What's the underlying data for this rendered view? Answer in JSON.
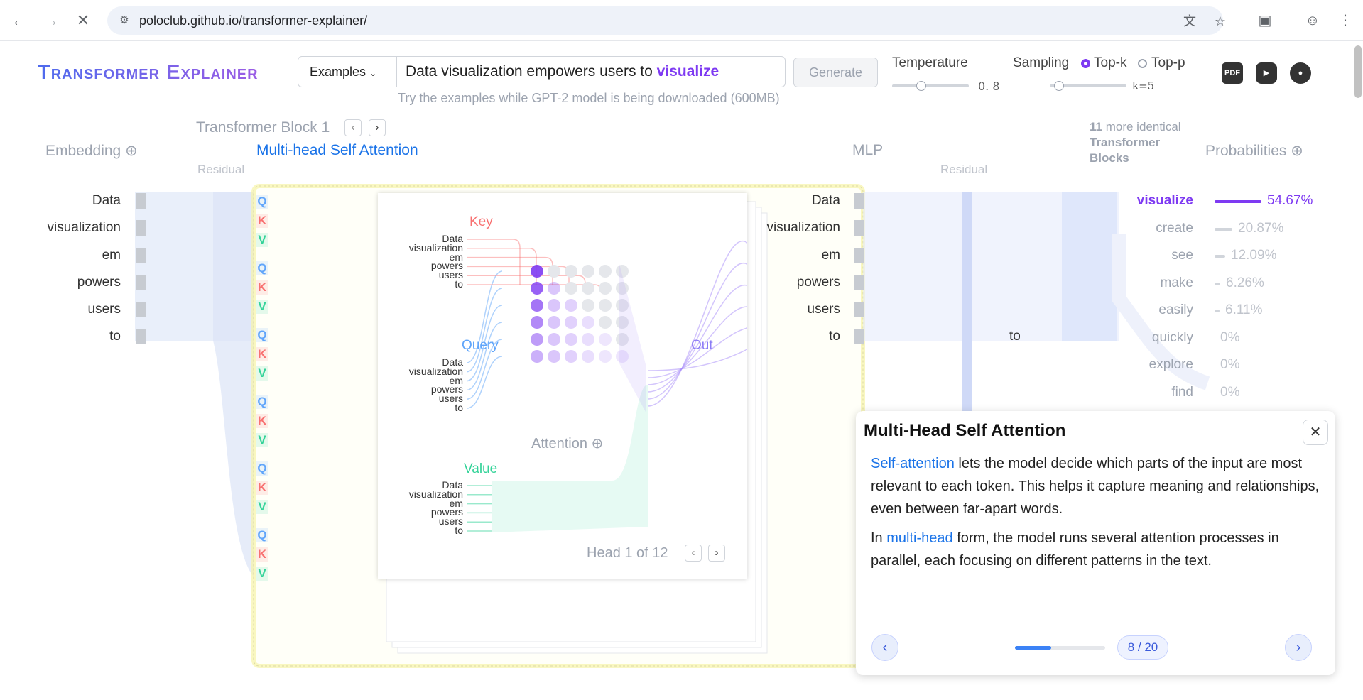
{
  "browser": {
    "url": "poloclub.github.io/transformer-explainer/",
    "icons": [
      "back-arrow-icon",
      "forward-arrow-icon",
      "stop-loading-icon",
      "site-info-icon",
      "translate-icon",
      "star-icon",
      "extensions-icon",
      "profile-icon",
      "menu-icon"
    ]
  },
  "header": {
    "logo": "Transformer Explainer",
    "examples_label": "Examples",
    "prompt_text": "Data visualization empowers users to",
    "prompt_highlight": "visualize",
    "generate_label": "Generate",
    "hint": "Try the examples while GPT-2 model is being downloaded (600MB)",
    "temperature_label": "Temperature",
    "temperature_value": "0. 8",
    "temperature_level": 0.4,
    "sampling_label": "Sampling",
    "topk_label": "Top-k",
    "topp_label": "Top-p",
    "selected_sampling": "Top-k",
    "k_value": "k=5",
    "icons": [
      "pdf-icon",
      "youtube-icon",
      "github-icon"
    ],
    "pdf_text": "PDF"
  },
  "sections": {
    "embedding": "Embedding",
    "block_title": "Transformer Block 1",
    "attention": "Multi-head Self Attention",
    "mlp": "MLP",
    "residual": "Residual",
    "more_blocks_count": "11",
    "more_blocks_text": "more identical",
    "more_blocks_bold": "Transformer Blocks",
    "probabilities": "Probabilities"
  },
  "tokens": [
    "Data",
    "visualization",
    "em",
    "powers",
    "users",
    "to"
  ],
  "attention_panel": {
    "key_label": "Key",
    "query_label": "Query",
    "value_label": "Value",
    "out_label": "Out",
    "attention_label": "Attention",
    "head_label": "Head 1 of 12",
    "qkv": [
      "Q",
      "K",
      "V"
    ],
    "colors": {
      "key": "#f87171",
      "query": "#60a5fa",
      "value": "#34d399",
      "attention": "#7e3af2"
    }
  },
  "mlp_token": "to",
  "probabilities": [
    {
      "token": "visualize",
      "value": "54.67%",
      "p": 0.5467
    },
    {
      "token": "create",
      "value": "20.87%",
      "p": 0.2087
    },
    {
      "token": "see",
      "value": "12.09%",
      "p": 0.1209
    },
    {
      "token": "make",
      "value": "6.26%",
      "p": 0.0626
    },
    {
      "token": "easily",
      "value": "6.11%",
      "p": 0.0611
    },
    {
      "token": "quickly",
      "value": "0%",
      "p": 0
    },
    {
      "token": "explore",
      "value": "0%",
      "p": 0
    },
    {
      "token": "find",
      "value": "0%",
      "p": 0
    }
  ],
  "card": {
    "title": "Multi-Head Self Attention",
    "p1_link": "Self-attention",
    "p1_text": " lets the model decide which parts of the input are most relevant to each token. This helps it capture meaning and relationships, even between far-apart words.",
    "p2_prefix": "In ",
    "p2_link": "multi-head",
    "p2_text": " form, the model runs several attention processes in parallel, each focusing on different patterns in the text.",
    "page": "8 / 20",
    "progress": 0.4
  }
}
